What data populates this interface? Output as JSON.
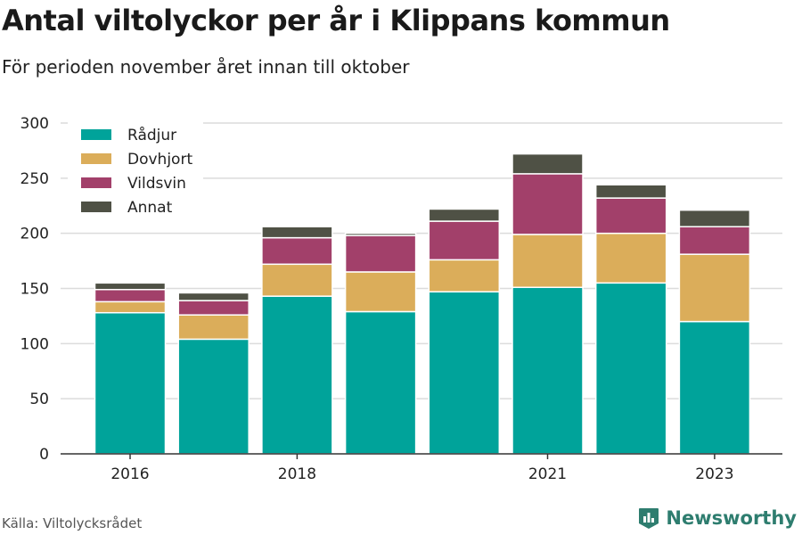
{
  "header": {
    "title": "Antal viltolyckor per år i Klippans kommun",
    "subtitle": "För perioden november året innan till oktober"
  },
  "footer": {
    "source": "Källa: Viltolycksrådet",
    "brand": "Newsworthy",
    "brand_icon": "bar-chart-logo-icon"
  },
  "chart_data": {
    "type": "bar",
    "stacked": true,
    "categories": [
      "2016",
      "2017",
      "2018",
      "2019",
      "2020",
      "2021",
      "2022",
      "2023"
    ],
    "tick_labels": [
      "2016",
      "",
      "2018",
      "",
      "",
      "2021",
      "",
      "2023"
    ],
    "ylim": [
      0,
      300
    ],
    "yticks": [
      0,
      50,
      100,
      150,
      200,
      250,
      300
    ],
    "grid": true,
    "legend": "top-left",
    "series": [
      {
        "name": "Rådjur",
        "color": "#00a39a",
        "values": [
          128,
          104,
          143,
          129,
          147,
          151,
          155,
          120
        ]
      },
      {
        "name": "Dovhjort",
        "color": "#dbad5a",
        "values": [
          10,
          22,
          29,
          36,
          29,
          48,
          45,
          61
        ]
      },
      {
        "name": "Vildsvin",
        "color": "#a2406a",
        "values": [
          11,
          13,
          24,
          33,
          35,
          55,
          32,
          25
        ]
      },
      {
        "name": "Annat",
        "color": "#4f5145",
        "values": [
          6,
          7,
          10,
          2,
          11,
          18,
          12,
          15
        ]
      }
    ]
  }
}
